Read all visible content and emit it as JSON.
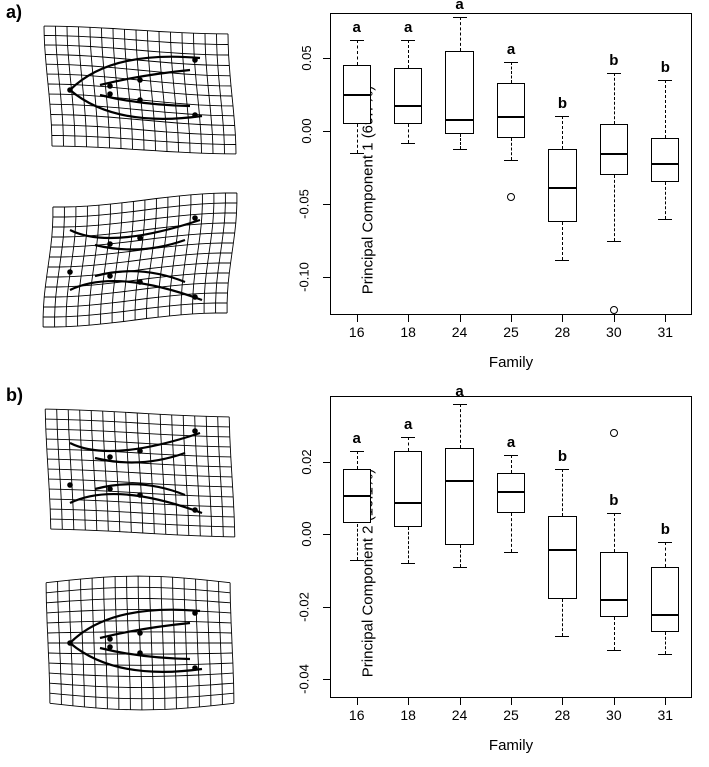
{
  "panelA": {
    "label": "a)",
    "ylabel": "Principal Component 1 (69.7%)",
    "xlabel": "Family",
    "ylim": [
      -0.125,
      0.08
    ],
    "yticks": [
      -0.1,
      -0.05,
      0.0,
      0.05
    ],
    "yticklabels": [
      "-0.10",
      "-0.05",
      "0.00",
      "0.05"
    ],
    "categories": [
      "16",
      "18",
      "24",
      "25",
      "28",
      "30",
      "31"
    ],
    "group_letters": [
      "a",
      "a",
      "a",
      "a",
      "b",
      "b",
      "b"
    ],
    "boxes": [
      {
        "min": -0.015,
        "q1": 0.005,
        "med": 0.025,
        "q3": 0.045,
        "max": 0.062,
        "outliers": []
      },
      {
        "min": -0.008,
        "q1": 0.005,
        "med": 0.018,
        "q3": 0.043,
        "max": 0.062,
        "outliers": []
      },
      {
        "min": -0.012,
        "q1": -0.002,
        "med": 0.008,
        "q3": 0.055,
        "max": 0.078,
        "outliers": []
      },
      {
        "min": -0.02,
        "q1": -0.005,
        "med": 0.01,
        "q3": 0.033,
        "max": 0.047,
        "outliers": [
          -0.045
        ]
      },
      {
        "min": -0.088,
        "q1": -0.062,
        "med": -0.038,
        "q3": -0.012,
        "max": 0.01,
        "outliers": []
      },
      {
        "min": -0.075,
        "q1": -0.03,
        "med": -0.015,
        "q3": 0.005,
        "max": 0.04,
        "outliers": [
          -0.122
        ]
      },
      {
        "min": -0.06,
        "q1": -0.035,
        "med": -0.022,
        "q3": -0.005,
        "max": 0.035,
        "outliers": []
      }
    ],
    "box_border_color": "#000000",
    "box_fill": "#ffffff",
    "whisker_style": "dashed",
    "background": "#ffffff"
  },
  "panelB": {
    "label": "b)",
    "ylabel": "Principal Component 2 (16.1%)",
    "xlabel": "Family",
    "ylim": [
      -0.045,
      0.038
    ],
    "yticks": [
      -0.04,
      -0.02,
      0.0,
      0.02
    ],
    "yticklabels": [
      "-0.04",
      "-0.02",
      "0.00",
      "0.02"
    ],
    "categories": [
      "16",
      "18",
      "24",
      "25",
      "28",
      "30",
      "31"
    ],
    "group_letters": [
      "a",
      "a",
      "a",
      "a",
      "b",
      "b",
      "b"
    ],
    "boxes": [
      {
        "min": -0.007,
        "q1": 0.003,
        "med": 0.011,
        "q3": 0.018,
        "max": 0.023,
        "outliers": []
      },
      {
        "min": -0.008,
        "q1": 0.002,
        "med": 0.009,
        "q3": 0.023,
        "max": 0.027,
        "outliers": []
      },
      {
        "min": -0.009,
        "q1": -0.003,
        "med": 0.015,
        "q3": 0.024,
        "max": 0.036,
        "outliers": []
      },
      {
        "min": -0.005,
        "q1": 0.006,
        "med": 0.012,
        "q3": 0.017,
        "max": 0.022,
        "outliers": []
      },
      {
        "min": -0.028,
        "q1": -0.018,
        "med": -0.004,
        "q3": 0.005,
        "max": 0.018,
        "outliers": []
      },
      {
        "min": -0.032,
        "q1": -0.023,
        "med": -0.018,
        "q3": -0.005,
        "max": 0.006,
        "outliers": [
          0.028
        ]
      },
      {
        "min": -0.033,
        "q1": -0.027,
        "med": -0.022,
        "q3": -0.009,
        "max": -0.002,
        "outliers": []
      }
    ],
    "box_border_color": "#000000",
    "box_fill": "#ffffff",
    "whisker_style": "dashed",
    "background": "#ffffff"
  },
  "warp_grids": {
    "line_color": "#000000",
    "line_width": 1.0,
    "cols": 16,
    "rows": 12
  }
}
